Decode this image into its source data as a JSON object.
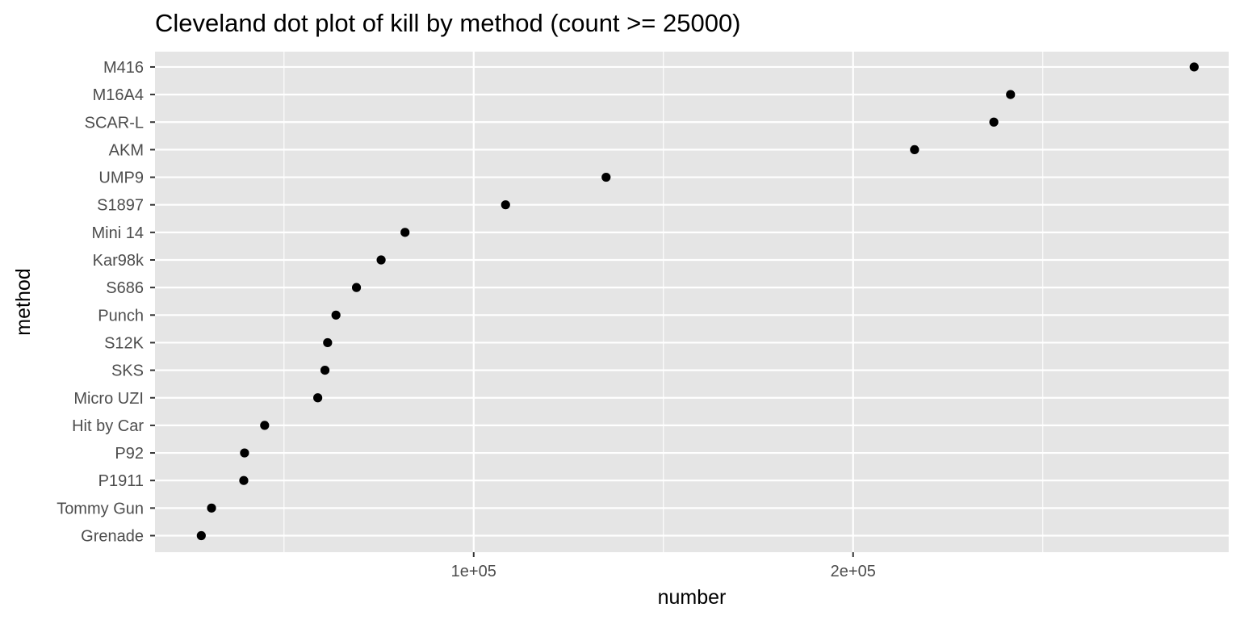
{
  "chart_data": {
    "type": "scatter",
    "title": "Cleveland dot plot of kill by method (count >= 25000)",
    "xlabel": "number",
    "ylabel": "method",
    "categories": [
      "Grenade",
      "Tommy Gun",
      "P1911",
      "P92",
      "Hit by Car",
      "Micro UZI",
      "SKS",
      "S12K",
      "Punch",
      "S686",
      "Kar98k",
      "Mini 14",
      "S1897",
      "UMP9",
      "AKM",
      "SCAR-L",
      "M16A4",
      "M416"
    ],
    "values": [
      28200,
      30900,
      39400,
      39600,
      44900,
      58900,
      60800,
      61500,
      63700,
      69100,
      75600,
      81900,
      108400,
      134900,
      216200,
      237100,
      241500,
      289900
    ],
    "xlim": [
      16000,
      299000
    ],
    "x_ticks": [
      100000,
      200000
    ],
    "x_tick_labels": [
      "1e+05",
      "2e+05"
    ],
    "point_color": "#000000",
    "panel_background": "#e5e5e5",
    "grid_color": "#ffffff",
    "grid": true,
    "legend": "none"
  }
}
